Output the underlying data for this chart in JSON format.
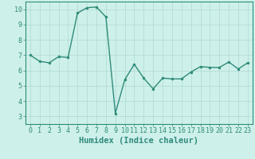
{
  "x": [
    0,
    1,
    2,
    3,
    4,
    5,
    6,
    7,
    8,
    9,
    10,
    11,
    12,
    13,
    14,
    15,
    16,
    17,
    18,
    19,
    20,
    21,
    22,
    23
  ],
  "y": [
    7.0,
    6.6,
    6.5,
    6.9,
    6.85,
    9.75,
    10.1,
    10.15,
    9.5,
    3.2,
    5.4,
    6.4,
    5.5,
    4.8,
    5.5,
    5.45,
    5.45,
    5.9,
    6.25,
    6.2,
    6.2,
    6.55,
    6.1,
    6.5
  ],
  "line_color": "#2e8b7a",
  "marker_color": "#2e8b7a",
  "bg_color": "#cef0ea",
  "grid_color": "#b0d8d2",
  "xlabel": "Humidex (Indice chaleur)",
  "xlim": [
    -0.5,
    23.5
  ],
  "ylim": [
    2.5,
    10.5
  ],
  "yticks": [
    3,
    4,
    5,
    6,
    7,
    8,
    9,
    10
  ],
  "xticks": [
    0,
    1,
    2,
    3,
    4,
    5,
    6,
    7,
    8,
    9,
    10,
    11,
    12,
    13,
    14,
    15,
    16,
    17,
    18,
    19,
    20,
    21,
    22,
    23
  ],
  "xlabel_fontsize": 7.5,
  "tick_fontsize": 6.0,
  "line_width": 1.0,
  "marker_size": 2.2
}
